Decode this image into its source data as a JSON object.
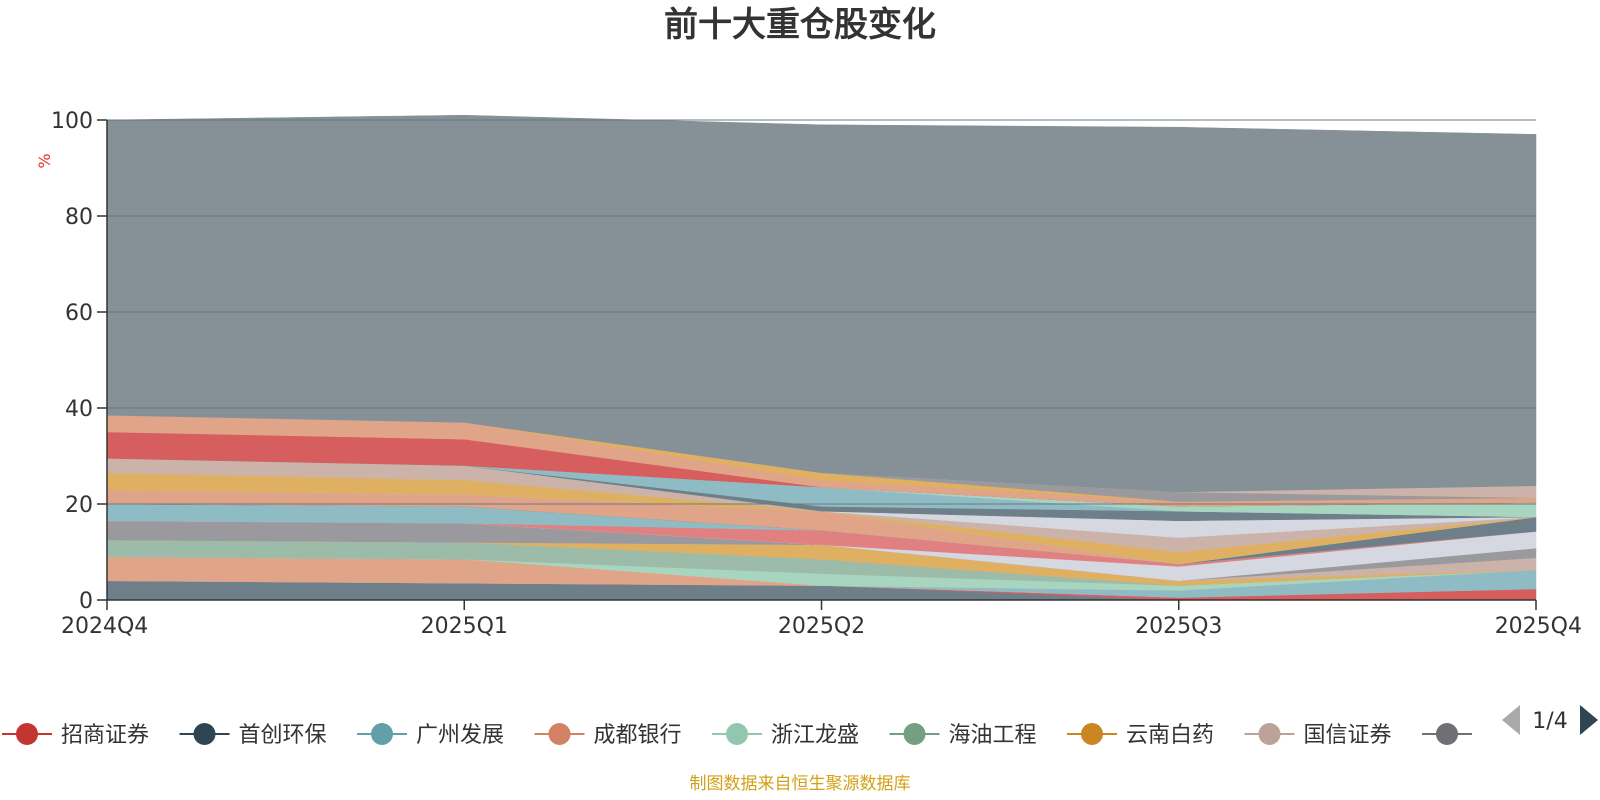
{
  "chart_data": {
    "type": "area",
    "title": "前十大重仓股变化",
    "ylabel": "%",
    "ylim": [
      0,
      100
    ],
    "yticks": [
      0,
      20,
      40,
      60,
      80,
      100
    ],
    "categories": [
      "2024Q4",
      "2025Q1",
      "2025Q2",
      "2025Q3",
      "2025Q4"
    ],
    "stacked": true,
    "grid": true,
    "legend_position": "bottom",
    "source_note": "制图数据来自恒生聚源数据库",
    "legend_pager": "1/4",
    "series": [
      {
        "name": "",
        "color": "#6e7f8a",
        "values": [
          4.0,
          3.5,
          3.0,
          0.0,
          0.0
        ]
      },
      {
        "name": "招商证券",
        "color": "#d65e5e",
        "values": [
          0.0,
          0.0,
          0.0,
          0.5,
          2.3
        ]
      },
      {
        "name": "广州发展",
        "color": "#8fbcc4",
        "values": [
          0.0,
          0.0,
          0.0,
          1.5,
          4.0
        ]
      },
      {
        "name": "成都银行",
        "color": "#e0a488",
        "values": [
          5.0,
          5.0,
          0.0,
          0.0,
          0.0
        ]
      },
      {
        "name": "浙江龙盛",
        "color": "#a8d5c0",
        "values": [
          0.0,
          0.0,
          2.5,
          1.0,
          0.0
        ]
      },
      {
        "name": "海油工程",
        "color": "#9cbba9",
        "values": [
          3.5,
          3.5,
          3.0,
          0.0,
          0.0
        ]
      },
      {
        "name": "云南白药",
        "color": "#e0b062",
        "values": [
          0.0,
          0.0,
          3.0,
          1.0,
          0.0
        ]
      },
      {
        "name": "国信证券",
        "color": "#ccb3aa",
        "values": [
          0.0,
          0.0,
          0.0,
          0.0,
          2.5
        ]
      },
      {
        "name": "",
        "color": "#9a9a9e",
        "values": [
          4.0,
          4.0,
          0.0,
          0.0,
          2.0
        ]
      },
      {
        "name": "",
        "color": "#d5d8e0",
        "values": [
          0.0,
          0.0,
          0.0,
          3.0,
          3.5
        ]
      },
      {
        "name": "",
        "color": "#e08080",
        "values": [
          0.0,
          0.0,
          3.0,
          0.5,
          0.0
        ]
      },
      {
        "name": "",
        "color": "#8fbcc4",
        "values": [
          3.5,
          3.5,
          0.0,
          0.0,
          0.0
        ]
      },
      {
        "name": "",
        "color": "#6e7f8a",
        "values": [
          0.0,
          0.0,
          0.0,
          0.0,
          3.0
        ]
      },
      {
        "name": "",
        "color": "#e0a488",
        "values": [
          3.0,
          2.5,
          4.0,
          0.0,
          0.0
        ]
      },
      {
        "name": "",
        "color": "#a8d5c0",
        "values": [
          0.0,
          0.0,
          0.0,
          0.0,
          0.0
        ]
      },
      {
        "name": "",
        "color": "#e0b062",
        "values": [
          3.5,
          3.0,
          0.0,
          2.5,
          0.0
        ]
      },
      {
        "name": "",
        "color": "#ccb3aa",
        "values": [
          3.0,
          3.0,
          0.0,
          3.0,
          0.0
        ]
      },
      {
        "name": "",
        "color": "#d5d8e0",
        "values": [
          0.0,
          0.0,
          0.0,
          3.5,
          0.0
        ]
      },
      {
        "name": "",
        "color": "#6e7f8a",
        "values": [
          0.0,
          0.0,
          1.0,
          2.0,
          0.0
        ]
      },
      {
        "name": "",
        "color": "#8fbcc4",
        "values": [
          0.0,
          0.0,
          4.0,
          0.0,
          0.0
        ]
      },
      {
        "name": "",
        "color": "#a8d5c0",
        "values": [
          0.0,
          0.0,
          0.0,
          1.0,
          3.0
        ]
      },
      {
        "name": "",
        "color": "#d65e5e",
        "values": [
          5.5,
          5.5,
          0.0,
          0.0,
          0.0
        ]
      },
      {
        "name": "",
        "color": "#e0a488",
        "values": [
          3.5,
          3.5,
          1.5,
          1.0,
          1.0
        ]
      },
      {
        "name": "",
        "color": "#e0b062",
        "values": [
          0.0,
          0.0,
          1.5,
          0.0,
          0.0
        ]
      },
      {
        "name": "",
        "color": "#9a9a9e",
        "values": [
          0.0,
          0.0,
          0.0,
          2.0,
          0.0
        ]
      },
      {
        "name": "",
        "color": "#ccb3aa",
        "values": [
          0.0,
          0.0,
          0.0,
          0.0,
          2.5
        ]
      },
      {
        "name": "",
        "color": "#859097",
        "values": [
          61.5,
          64.0,
          72.5,
          76.0,
          73.2
        ]
      }
    ]
  },
  "legend": {
    "items": [
      {
        "label": "招商证券",
        "color": "#c23531",
        "icon": "circle-line-icon"
      },
      {
        "label": "首创环保",
        "color": "#2f4554",
        "icon": "circle-line-icon"
      },
      {
        "label": "广州发展",
        "color": "#61a0a8",
        "icon": "circle-line-icon"
      },
      {
        "label": "成都银行",
        "color": "#d48265",
        "icon": "circle-line-icon"
      },
      {
        "label": "浙江龙盛",
        "color": "#91c7ae",
        "icon": "circle-line-icon"
      },
      {
        "label": "海油工程",
        "color": "#749f83",
        "icon": "circle-line-icon"
      },
      {
        "label": "云南白药",
        "color": "#ca8622",
        "icon": "circle-line-icon"
      },
      {
        "label": "国信证券",
        "color": "#bda29a",
        "icon": "circle-line-icon"
      },
      {
        "label": "",
        "color": "#6e7074",
        "icon": "circle-line-icon"
      }
    ],
    "pager": {
      "text": "1/4",
      "prev_icon": "triangle-left-icon",
      "next_icon": "triangle-right-icon"
    }
  }
}
